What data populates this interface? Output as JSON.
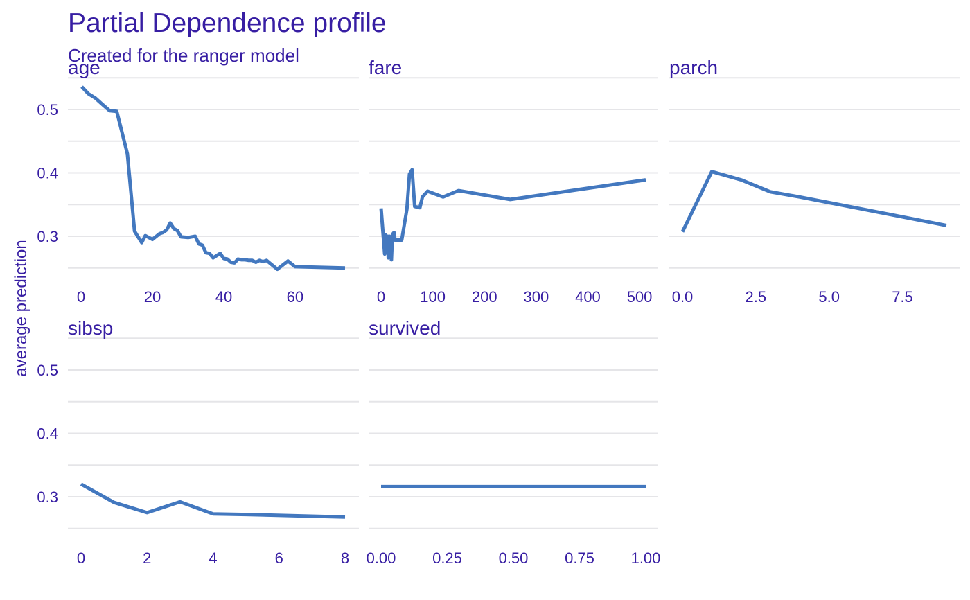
{
  "chart_data": {
    "type": "line",
    "title": "Partial Dependence profile",
    "subtitle": "Created for the ranger model",
    "ylabel": "average prediction",
    "shared_y": {
      "ylim": [
        0.24,
        0.54
      ],
      "ticks": [
        0.3,
        0.4,
        0.5
      ],
      "tick_labels": [
        "0.3",
        "0.4",
        "0.5"
      ]
    },
    "color": "#4378bf",
    "text_color": "#371ea3",
    "grid": true,
    "panels": [
      {
        "name": "age",
        "xlim": [
          0,
          74
        ],
        "xticks": [
          0,
          20,
          40,
          60
        ],
        "xtick_labels": [
          "0",
          "20",
          "40",
          "60"
        ],
        "x": [
          0.2,
          2,
          4,
          6,
          8,
          10,
          13,
          15,
          17,
          18,
          20,
          22,
          23,
          24,
          25,
          26,
          27,
          28,
          30,
          32,
          33,
          34,
          35,
          36,
          37,
          39,
          40,
          41,
          42,
          43,
          44,
          45,
          46,
          47,
          48,
          49,
          50,
          51,
          52,
          55,
          58,
          60,
          74
        ],
        "y": [
          0.536,
          0.525,
          0.518,
          0.508,
          0.498,
          0.497,
          0.43,
          0.308,
          0.29,
          0.301,
          0.295,
          0.304,
          0.306,
          0.31,
          0.321,
          0.312,
          0.309,
          0.299,
          0.298,
          0.3,
          0.288,
          0.286,
          0.274,
          0.273,
          0.266,
          0.273,
          0.265,
          0.264,
          0.259,
          0.258,
          0.264,
          0.263,
          0.263,
          0.262,
          0.262,
          0.259,
          0.262,
          0.26,
          0.262,
          0.248,
          0.261,
          0.252,
          0.25
        ]
      },
      {
        "name": "fare",
        "xlim": [
          0,
          512
        ],
        "xticks": [
          0,
          100,
          200,
          300,
          400,
          500
        ],
        "xtick_labels": [
          "0",
          "100",
          "200",
          "300",
          "400",
          "500"
        ],
        "x": [
          0,
          7,
          9,
          10,
          13,
          14,
          16,
          18,
          20,
          22,
          25,
          27,
          28,
          30,
          32,
          40,
          50,
          55,
          60,
          65,
          70,
          75,
          80,
          90,
          120,
          150,
          250,
          512
        ],
        "y": [
          0.344,
          0.272,
          0.302,
          0.274,
          0.3,
          0.266,
          0.3,
          0.292,
          0.263,
          0.303,
          0.306,
          0.294,
          0.294,
          0.294,
          0.294,
          0.294,
          0.343,
          0.398,
          0.405,
          0.347,
          0.346,
          0.345,
          0.362,
          0.371,
          0.362,
          0.372,
          0.358,
          0.389
        ]
      },
      {
        "name": "parch",
        "xlim": [
          0,
          9
        ],
        "xticks": [
          0,
          2.5,
          5,
          7.5
        ],
        "xtick_labels": [
          "0.0",
          "2.5",
          "5.0",
          "7.5"
        ],
        "x": [
          0,
          1,
          2,
          3,
          4,
          5,
          6,
          9
        ],
        "y": [
          0.307,
          0.402,
          0.389,
          0.37,
          0.362,
          0.353,
          0.344,
          0.317
        ]
      },
      {
        "name": "sibsp",
        "xlim": [
          0,
          8
        ],
        "xticks": [
          0,
          2,
          4,
          6,
          8
        ],
        "xtick_labels": [
          "0",
          "2",
          "4",
          "6",
          "8"
        ],
        "x": [
          0,
          1,
          2,
          3,
          4,
          5,
          8
        ],
        "y": [
          0.32,
          0.291,
          0.275,
          0.292,
          0.273,
          0.272,
          0.268
        ]
      },
      {
        "name": "survived",
        "xlim": [
          0,
          1
        ],
        "xticks": [
          0,
          0.25,
          0.5,
          0.75,
          1
        ],
        "xtick_labels": [
          "0.00",
          "0.25",
          "0.50",
          "0.75",
          "1.00"
        ],
        "x": [
          0,
          1
        ],
        "y": [
          0.316,
          0.316
        ]
      }
    ]
  }
}
